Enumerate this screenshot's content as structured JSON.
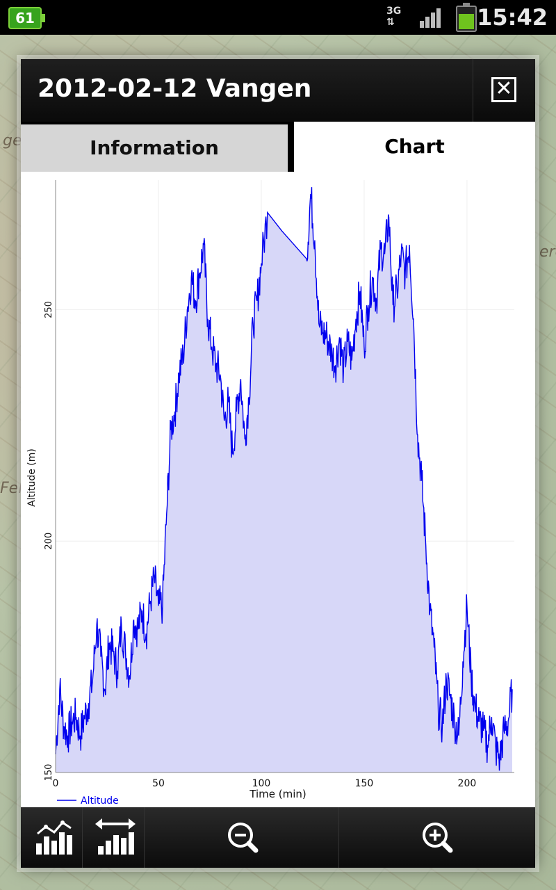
{
  "status_bar": {
    "battery_left": "61",
    "network": "3G",
    "time": "15:42"
  },
  "dialog": {
    "title": "2012-02-12 Vangen",
    "close_icon": "close-icon"
  },
  "tabs": [
    {
      "label": "Information",
      "selected": false
    },
    {
      "label": "Chart",
      "selected": true
    }
  ],
  "toolbar": {
    "icons": [
      "chart-stats-icon",
      "chart-range-icon",
      "zoom-out-icon",
      "zoom-in-icon"
    ]
  },
  "chart_data": {
    "type": "area",
    "xlabel": "Time (min)",
    "ylabel": "Altitude (m)",
    "xlim": [
      0,
      223
    ],
    "ylim": [
      150,
      278
    ],
    "x_ticks": [
      "0",
      "50",
      "100",
      "150",
      "200"
    ],
    "y_ticks": [
      "150",
      "200",
      "250"
    ],
    "grid": true,
    "legend_position": "bottom-left",
    "colors": {
      "line": "#0000ee",
      "fill": "#d7d7f8"
    },
    "series": [
      {
        "name": "Altitude",
        "x": [
          0,
          2,
          4,
          6,
          8,
          10,
          12,
          14,
          16,
          18,
          20,
          22,
          24,
          26,
          28,
          30,
          32,
          34,
          36,
          38,
          40,
          42,
          44,
          46,
          48,
          50,
          52,
          54,
          56,
          58,
          60,
          62,
          64,
          66,
          68,
          70,
          72,
          74,
          76,
          78,
          80,
          82,
          84,
          86,
          88,
          90,
          92,
          94,
          96,
          98,
          100,
          103,
          110,
          122,
          124,
          126,
          128,
          130,
          132,
          134,
          136,
          138,
          140,
          142,
          144,
          146,
          148,
          150,
          152,
          154,
          156,
          158,
          160,
          162,
          164,
          166,
          168,
          170,
          172,
          174,
          176,
          178,
          180,
          182,
          184,
          186,
          188,
          190,
          192,
          194,
          196,
          198,
          200,
          202,
          204,
          206,
          208,
          210,
          212,
          214,
          216,
          218,
          220,
          222
        ],
        "y": [
          154,
          168,
          160,
          158,
          161,
          162,
          158,
          162,
          165,
          170,
          182,
          175,
          168,
          178,
          176,
          172,
          182,
          176,
          171,
          183,
          181,
          185,
          180,
          187,
          192,
          186,
          186,
          206,
          224,
          228,
          236,
          240,
          250,
          257,
          252,
          258,
          264,
          248,
          242,
          238,
          236,
          226,
          230,
          219,
          228,
          235,
          222,
          231,
          247,
          252,
          260,
          271,
          267,
          261,
          275,
          265,
          247,
          245,
          244,
          241,
          238,
          244,
          237,
          243,
          239,
          248,
          254,
          242,
          251,
          257,
          252,
          263,
          262,
          270,
          251,
          254,
          262,
          258,
          264,
          248,
          223,
          213,
          199,
          185,
          177,
          164,
          160,
          170,
          166,
          161,
          158,
          174,
          186,
          171,
          164,
          161,
          159,
          156,
          162,
          155,
          153,
          159,
          161,
          168
        ]
      }
    ]
  }
}
